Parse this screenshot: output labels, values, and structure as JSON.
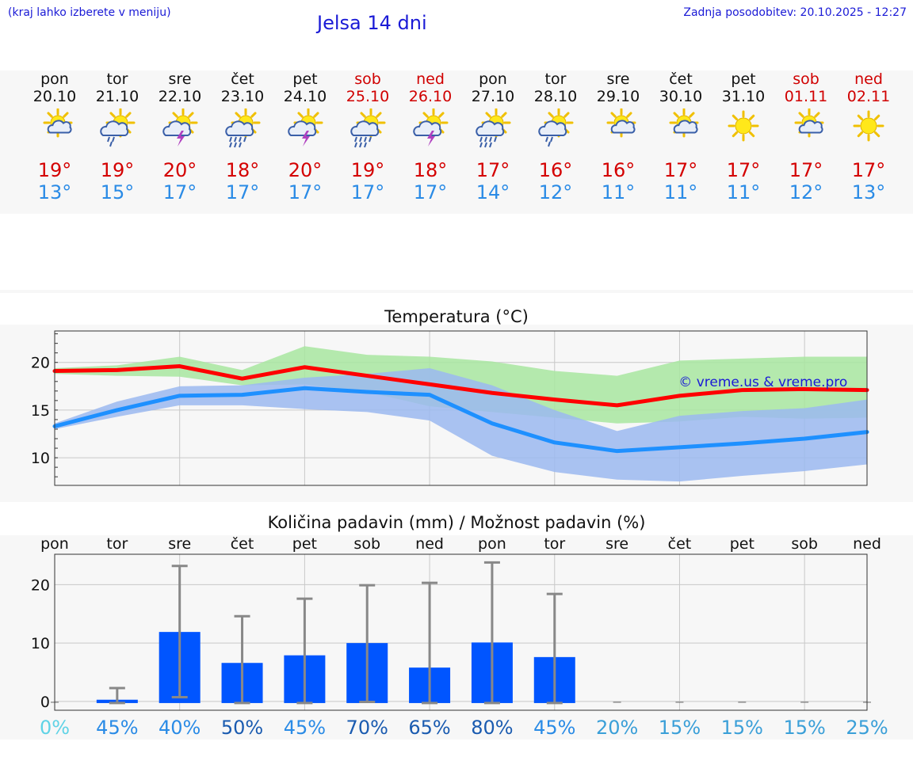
{
  "header": {
    "left_note": "(kraj lahko izberete v meniju)",
    "title": "Jelsa 14 dni",
    "last_update": "Zadnja posodobitev: 20.10.2025 - 12:27"
  },
  "days": [
    {
      "name": "pon",
      "date": "20.10",
      "weekend": false,
      "icon": "sun-cloud-icon",
      "tmax": "19°",
      "tmin": "13°"
    },
    {
      "name": "tor",
      "date": "21.10",
      "weekend": false,
      "icon": "sun-cloud-rain-icon",
      "tmax": "19°",
      "tmin": "15°"
    },
    {
      "name": "sre",
      "date": "22.10",
      "weekend": false,
      "icon": "sun-cloud-thunder-icon",
      "tmax": "20°",
      "tmin": "17°"
    },
    {
      "name": "čet",
      "date": "23.10",
      "weekend": false,
      "icon": "sun-cloud-heavy-rain-icon",
      "tmax": "18°",
      "tmin": "17°"
    },
    {
      "name": "pet",
      "date": "24.10",
      "weekend": false,
      "icon": "sun-cloud-thunder-icon",
      "tmax": "20°",
      "tmin": "17°"
    },
    {
      "name": "sob",
      "date": "25.10",
      "weekend": true,
      "icon": "sun-cloud-heavy-rain-icon",
      "tmax": "19°",
      "tmin": "17°"
    },
    {
      "name": "ned",
      "date": "26.10",
      "weekend": true,
      "icon": "sun-cloud-thunder-icon",
      "tmax": "18°",
      "tmin": "17°"
    },
    {
      "name": "pon",
      "date": "27.10",
      "weekend": false,
      "icon": "sun-cloud-heavy-rain-icon",
      "tmax": "17°",
      "tmin": "14°"
    },
    {
      "name": "tor",
      "date": "28.10",
      "weekend": false,
      "icon": "sun-cloud-rain-icon",
      "tmax": "16°",
      "tmin": "12°"
    },
    {
      "name": "sre",
      "date": "29.10",
      "weekend": false,
      "icon": "sun-cloud-icon",
      "tmax": "16°",
      "tmin": "11°"
    },
    {
      "name": "čet",
      "date": "30.10",
      "weekend": false,
      "icon": "sun-cloud-icon",
      "tmax": "17°",
      "tmin": "11°"
    },
    {
      "name": "pet",
      "date": "31.10",
      "weekend": false,
      "icon": "sun-icon",
      "tmax": "17°",
      "tmin": "11°"
    },
    {
      "name": "sob",
      "date": "01.11",
      "weekend": true,
      "icon": "sun-cloud-icon",
      "tmax": "17°",
      "tmin": "12°"
    },
    {
      "name": "ned",
      "date": "02.11",
      "weekend": true,
      "icon": "sun-icon",
      "tmax": "17°",
      "tmin": "13°"
    }
  ],
  "colors": {
    "title_blue": "#1a1ad6",
    "max_red": "#d40000",
    "min_blue": "#2a8be6",
    "max_line": "#ff0000",
    "min_line": "#1e90ff",
    "max_band": "#a8e6a0",
    "min_band": "#9bb8f0",
    "overlap_band": "#7cc4a0",
    "bar": "#0055ff",
    "whisker": "#888888"
  },
  "chart_data": [
    {
      "type": "line",
      "title": "Temperatura (°C)",
      "watermark": "© vreme.us & vreme.pro",
      "x_count": 14,
      "ylim": [
        7.1,
        23.3
      ],
      "yticks": [
        10,
        15,
        20
      ],
      "grid": true,
      "series": [
        {
          "name": "max",
          "values": [
            19.1,
            19.2,
            19.6,
            18.3,
            19.5,
            18.6,
            17.7,
            16.8,
            16.1,
            15.5,
            16.5,
            17.1,
            17.2,
            17.1
          ]
        },
        {
          "name": "min",
          "values": [
            13.3,
            15.0,
            16.5,
            16.6,
            17.3,
            16.9,
            16.6,
            13.6,
            11.6,
            10.7,
            11.1,
            11.5,
            12.0,
            12.7
          ]
        }
      ],
      "max_band": {
        "upper": [
          19.4,
          19.7,
          20.6,
          19.2,
          21.7,
          20.8,
          20.6,
          20.1,
          19.1,
          18.6,
          20.2,
          20.4,
          20.6,
          20.6
        ],
        "lower": [
          18.8,
          18.6,
          18.5,
          17.6,
          17.7,
          16.9,
          15.4,
          14.8,
          14.2,
          13.6,
          13.8,
          14.3,
          14.1,
          14.2
        ]
      },
      "min_band": {
        "upper": [
          13.6,
          15.9,
          17.5,
          17.6,
          18.4,
          18.8,
          19.4,
          17.6,
          15.0,
          12.8,
          14.4,
          14.9,
          15.2,
          16.1
        ],
        "lower": [
          13.0,
          14.3,
          15.5,
          15.5,
          15.1,
          14.8,
          13.9,
          10.2,
          8.5,
          7.7,
          7.5,
          8.1,
          8.6,
          9.3
        ]
      }
    },
    {
      "type": "bar",
      "title": "Količina padavin (mm) / Možnost padavin (%)",
      "categories": [
        "pon",
        "tor",
        "sre",
        "čet",
        "pet",
        "sob",
        "ned",
        "pon",
        "tor",
        "sre",
        "čet",
        "pet",
        "sob",
        "ned"
      ],
      "ylim": [
        -1.5,
        25.2
      ],
      "yticks": [
        0,
        10,
        20
      ],
      "grid": true,
      "values": [
        0,
        0.3,
        11.9,
        6.6,
        7.9,
        10.0,
        5.8,
        10.1,
        7.6,
        0,
        0,
        0,
        0,
        0
      ],
      "range_low": [
        0,
        0,
        1.0,
        0,
        0,
        0.2,
        0,
        0,
        0,
        0,
        0,
        0,
        0,
        0
      ],
      "range_high": [
        0,
        2.3,
        23.2,
        14.6,
        17.6,
        19.9,
        20.3,
        23.8,
        18.4,
        0,
        0,
        0,
        0,
        0
      ],
      "probability": [
        "0%",
        "45%",
        "40%",
        "50%",
        "45%",
        "70%",
        "65%",
        "80%",
        "45%",
        "20%",
        "15%",
        "15%",
        "15%",
        "25%"
      ],
      "probability_colors": [
        "#5fd3e6",
        "#2a8be6",
        "#2a8be6",
        "#1a5bb0",
        "#2a8be6",
        "#1a5bb0",
        "#1a5bb0",
        "#1a5bb0",
        "#2a8be6",
        "#3a9fd8",
        "#3a9fd8",
        "#3a9fd8",
        "#3a9fd8",
        "#3a9fd8"
      ]
    }
  ]
}
